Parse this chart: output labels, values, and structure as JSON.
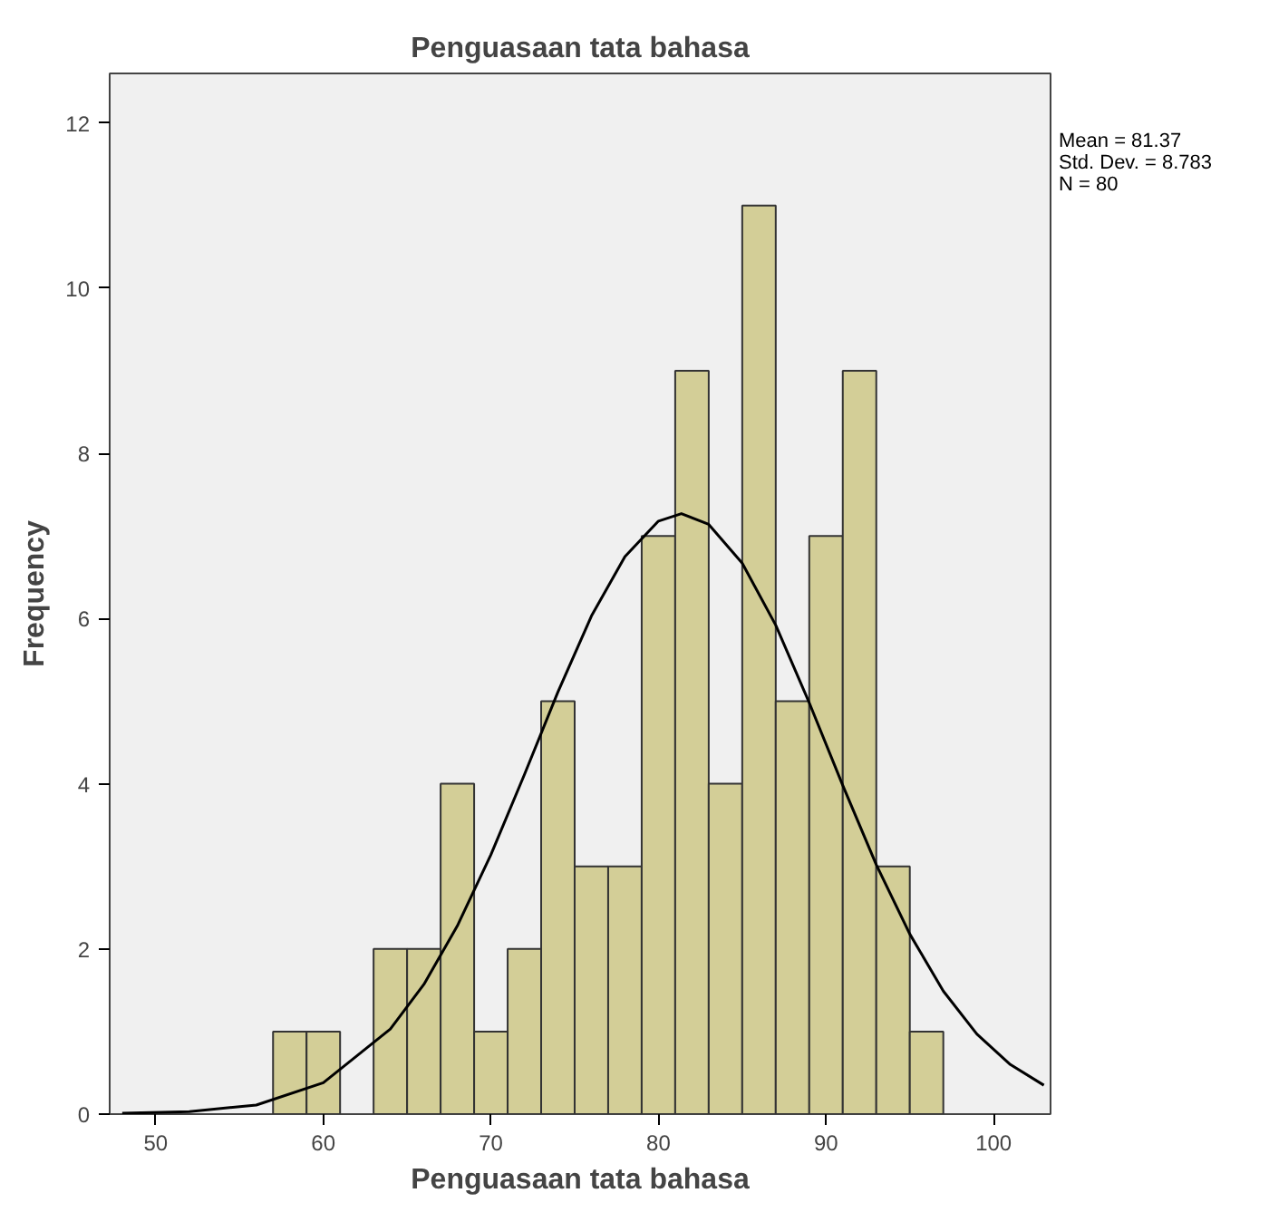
{
  "chart_data": {
    "type": "histogram",
    "title": "Penguasaan tata bahasa",
    "xlabel": "Penguasaan tata bahasa",
    "ylabel": "Frequency",
    "xlim": [
      47.25,
      103.4
    ],
    "ylim": [
      0,
      12.6
    ],
    "xticks": [
      50,
      60,
      70,
      80,
      90,
      100
    ],
    "yticks": [
      0,
      2,
      4,
      6,
      8,
      10,
      12
    ],
    "grid": false,
    "annotations": [
      "Mean = 81.37",
      "Std. Dev. = 8.783",
      "N = 80"
    ],
    "series": [
      {
        "type": "histogram",
        "color": "#d3ce97",
        "bins": [
          57,
          59,
          61,
          63,
          65,
          67,
          69,
          71,
          73,
          75,
          77,
          79,
          81,
          83,
          85,
          87,
          89,
          91,
          93,
          95,
          97
        ],
        "values": [
          1,
          1,
          0,
          2,
          2,
          4,
          1,
          2,
          5,
          3,
          3,
          7,
          9,
          4,
          11,
          5,
          7,
          9,
          3,
          1
        ]
      },
      {
        "type": "line",
        "color": "#000000",
        "x": [
          48,
          52,
          56,
          60,
          64,
          66,
          68,
          70,
          72,
          74,
          76,
          78,
          80,
          81.37,
          83,
          85,
          87,
          89,
          91,
          93,
          95,
          97,
          99,
          101,
          103
        ],
        "values": [
          0.01,
          0.03,
          0.11,
          0.38,
          1.03,
          1.57,
          2.28,
          3.14,
          4.11,
          5.11,
          6.03,
          6.75,
          7.18,
          7.27,
          7.14,
          6.67,
          5.92,
          4.98,
          3.98,
          3.02,
          2.18,
          1.49,
          0.97,
          0.6,
          0.35
        ]
      }
    ]
  }
}
